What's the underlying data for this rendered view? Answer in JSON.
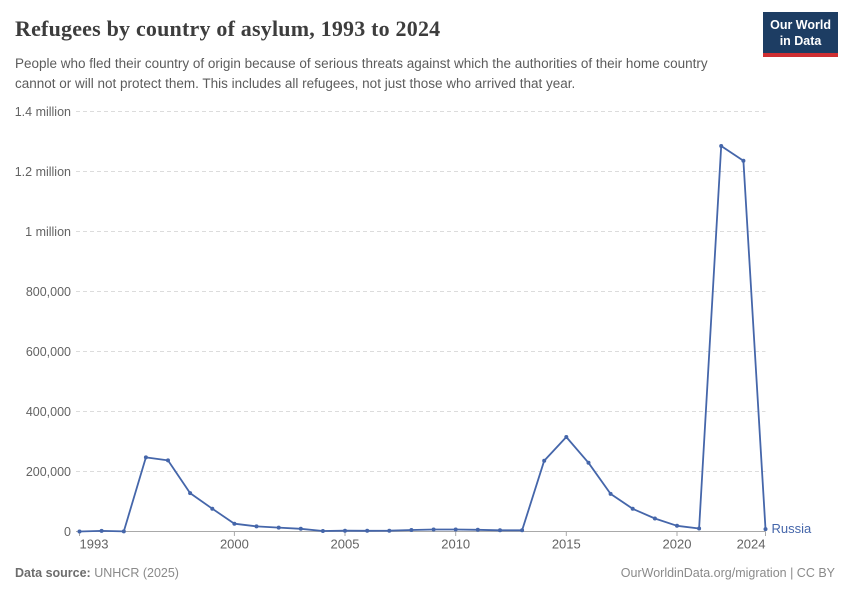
{
  "header": {
    "title": "Refugees by country of asylum, 1993 to 2024",
    "subtitle": "People who fled their country of origin because of serious threats against which the authorities of their home country cannot or will not protect them. This includes all refugees, not just those who arrived that year.",
    "logo": {
      "line1": "Our World",
      "line2": "in Data",
      "bg_color": "#1d3d63",
      "accent_color": "#cf2f32"
    }
  },
  "chart_data": {
    "type": "line",
    "title": "Refugees by country of asylum, 1993 to 2024",
    "xlabel": "",
    "ylabel": "",
    "xlim": [
      1993,
      2024
    ],
    "ylim": [
      0,
      1400000
    ],
    "grid": "horizontal-dashed",
    "legend_position": "end-of-line",
    "x": [
      1993,
      1994,
      1995,
      1996,
      1997,
      1998,
      1999,
      2000,
      2001,
      2002,
      2003,
      2004,
      2005,
      2006,
      2007,
      2008,
      2009,
      2010,
      2011,
      2012,
      2013,
      2014,
      2015,
      2016,
      2017,
      2018,
      2019,
      2020,
      2021,
      2022,
      2023,
      2024
    ],
    "series": [
      {
        "name": "Russia",
        "color": "#4566aa",
        "values": [
          50,
          2000,
          500,
          247000,
          237000,
          128000,
          76000,
          26000,
          17000,
          13000,
          9000,
          1800,
          2700,
          2300,
          2700,
          4900,
          6600,
          6500,
          5600,
          4100,
          3900,
          236000,
          315000,
          229000,
          125400,
          75600,
          43300,
          19000,
          10000,
          1285000,
          1236000,
          8000
        ]
      }
    ],
    "y_ticks": [
      {
        "value": 0,
        "label": "0"
      },
      {
        "value": 200000,
        "label": "200,000"
      },
      {
        "value": 400000,
        "label": "400,000"
      },
      {
        "value": 600000,
        "label": "600,000"
      },
      {
        "value": 800000,
        "label": "800,000"
      },
      {
        "value": 1000000,
        "label": "1 million"
      },
      {
        "value": 1200000,
        "label": "1.2 million"
      },
      {
        "value": 1400000,
        "label": "1.4 million"
      }
    ],
    "x_ticks": [
      {
        "value": 1993,
        "label": "1993",
        "align": "start"
      },
      {
        "value": 2000,
        "label": "2000",
        "align": "middle"
      },
      {
        "value": 2005,
        "label": "2005",
        "align": "middle"
      },
      {
        "value": 2010,
        "label": "2010",
        "align": "middle"
      },
      {
        "value": 2015,
        "label": "2015",
        "align": "middle"
      },
      {
        "value": 2020,
        "label": "2020",
        "align": "middle"
      },
      {
        "value": 2024,
        "label": "2024",
        "align": "end"
      }
    ],
    "colors": {
      "gridline": "#dcdcdc",
      "axis": "#a9a9a9",
      "tick_label": "#636363"
    }
  },
  "footer": {
    "source_label": "Data source:",
    "source_value": "UNHCR (2025)",
    "attribution": "OurWorldinData.org/migration | CC BY"
  }
}
